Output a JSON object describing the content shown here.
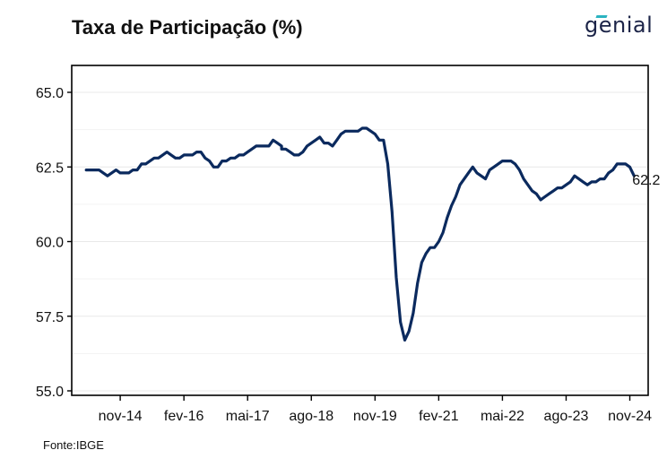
{
  "header": {
    "title": "Taxa de Participação (%)",
    "logo": "genial"
  },
  "footer": {
    "source": "Fonte:IBGE"
  },
  "colors": {
    "line": "#0b2a5e",
    "grid": "#e8e8e8",
    "axis": "#000000",
    "logo_accent": "#2bb3c0"
  },
  "chart_data": {
    "type": "line",
    "title": "Taxa de Participação (%)",
    "xlabel": "",
    "ylabel": "",
    "x_start": "2013-12",
    "x_end": "2025-01",
    "xticks": [
      {
        "x": "2014-11",
        "label": "nov-14"
      },
      {
        "x": "2016-02",
        "label": "fev-16"
      },
      {
        "x": "2017-05",
        "label": "mai-17"
      },
      {
        "x": "2018-08",
        "label": "ago-18"
      },
      {
        "x": "2019-11",
        "label": "nov-19"
      },
      {
        "x": "2021-02",
        "label": "fev-21"
      },
      {
        "x": "2022-05",
        "label": "mai-22"
      },
      {
        "x": "2023-08",
        "label": "ago-23"
      },
      {
        "x": "2024-11",
        "label": "nov-24"
      }
    ],
    "ylim": [
      55.0,
      65.0
    ],
    "yticks": [
      {
        "value": 55.0,
        "label": "55.0"
      },
      {
        "value": 57.5,
        "label": "57.5"
      },
      {
        "value": 60.0,
        "label": "60.0"
      },
      {
        "value": 62.5,
        "label": "62.5"
      },
      {
        "value": 65.0,
        "label": "65.0"
      }
    ],
    "grid": true,
    "last_value_label": "62.2",
    "series": [
      {
        "color": "#0b2a5e",
        "points": [
          [
            "2014-03",
            62.4
          ],
          [
            "2014-04",
            62.4
          ],
          [
            "2014-05",
            62.4
          ],
          [
            "2014-06",
            62.4
          ],
          [
            "2014-07",
            62.3
          ],
          [
            "2014-08",
            62.2
          ],
          [
            "2014-09",
            62.3
          ],
          [
            "2014-10",
            62.4
          ],
          [
            "2014-11",
            62.3
          ],
          [
            "2014-12",
            62.3
          ],
          [
            "2015-01",
            62.3
          ],
          [
            "2015-02",
            62.4
          ],
          [
            "2015-03",
            62.4
          ],
          [
            "2015-04",
            62.6
          ],
          [
            "2015-05",
            62.6
          ],
          [
            "2015-06",
            62.7
          ],
          [
            "2015-07",
            62.8
          ],
          [
            "2015-08",
            62.8
          ],
          [
            "2015-09",
            62.9
          ],
          [
            "2015-10",
            63.0
          ],
          [
            "2015-11",
            62.9
          ],
          [
            "2015-12",
            62.8
          ],
          [
            "2016-01",
            62.8
          ],
          [
            "2016-02",
            62.9
          ],
          [
            "2016-03",
            62.9
          ],
          [
            "2016-04",
            62.9
          ],
          [
            "2016-05",
            63.0
          ],
          [
            "2016-06",
            63.0
          ],
          [
            "2016-07",
            62.8
          ],
          [
            "2016-08",
            62.7
          ],
          [
            "2016-09",
            62.5
          ],
          [
            "2016-10",
            62.5
          ],
          [
            "2016-11",
            62.7
          ],
          [
            "2016-12",
            62.7
          ],
          [
            "2017-01",
            62.8
          ],
          [
            "2017-02",
            62.8
          ],
          [
            "2017-03",
            62.9
          ],
          [
            "2017-04",
            62.9
          ],
          [
            "2017-05",
            63.0
          ],
          [
            "2017-06",
            63.1
          ],
          [
            "2017-07",
            63.2
          ],
          [
            "2017-08",
            63.2
          ],
          [
            "2017-09",
            63.2
          ],
          [
            "2017-10",
            63.2
          ],
          [
            "2017-11",
            63.4
          ],
          [
            "2017-12",
            63.3
          ],
          [
            "2017-13",
            63.2
          ],
          [
            "2018-01",
            63.1
          ],
          [
            "2018-02",
            63.1
          ],
          [
            "2018-03",
            63.0
          ],
          [
            "2018-04",
            62.9
          ],
          [
            "2018-05",
            62.9
          ],
          [
            "2018-06",
            63.0
          ],
          [
            "2018-07",
            63.2
          ],
          [
            "2018-08",
            63.3
          ],
          [
            "2018-09",
            63.4
          ],
          [
            "2018-10",
            63.5
          ],
          [
            "2018-11",
            63.3
          ],
          [
            "2018-12",
            63.3
          ],
          [
            "2019-01",
            63.2
          ],
          [
            "2019-02",
            63.4
          ],
          [
            "2019-03",
            63.6
          ],
          [
            "2019-04",
            63.7
          ],
          [
            "2019-05",
            63.7
          ],
          [
            "2019-06",
            63.7
          ],
          [
            "2019-07",
            63.7
          ],
          [
            "2019-08",
            63.8
          ],
          [
            "2019-09",
            63.8
          ],
          [
            "2019-10",
            63.7
          ],
          [
            "2019-11",
            63.6
          ],
          [
            "2019-12",
            63.4
          ],
          [
            "2020-01",
            63.4
          ],
          [
            "2020-02",
            62.6
          ],
          [
            "2020-03",
            61.0
          ],
          [
            "2020-04",
            58.8
          ],
          [
            "2020-05",
            57.3
          ],
          [
            "2020-06",
            56.7
          ],
          [
            "2020-07",
            57.0
          ],
          [
            "2020-08",
            57.6
          ],
          [
            "2020-09",
            58.6
          ],
          [
            "2020-10",
            59.3
          ],
          [
            "2020-11",
            59.6
          ],
          [
            "2020-12",
            59.8
          ],
          [
            "2021-01",
            59.8
          ],
          [
            "2021-02",
            60.0
          ],
          [
            "2021-03",
            60.3
          ],
          [
            "2021-04",
            60.8
          ],
          [
            "2021-05",
            61.2
          ],
          [
            "2021-06",
            61.5
          ],
          [
            "2021-07",
            61.9
          ],
          [
            "2021-08",
            62.1
          ],
          [
            "2021-09",
            62.3
          ],
          [
            "2021-10",
            62.5
          ],
          [
            "2021-11",
            62.3
          ],
          [
            "2021-12",
            62.2
          ],
          [
            "2022-01",
            62.1
          ],
          [
            "2022-02",
            62.4
          ],
          [
            "2022-03",
            62.5
          ],
          [
            "2022-04",
            62.6
          ],
          [
            "2022-05",
            62.7
          ],
          [
            "2022-06",
            62.7
          ],
          [
            "2022-07",
            62.7
          ],
          [
            "2022-08",
            62.6
          ],
          [
            "2022-09",
            62.4
          ],
          [
            "2022-10",
            62.1
          ],
          [
            "2022-11",
            61.9
          ],
          [
            "2022-12",
            61.7
          ],
          [
            "2023-01",
            61.6
          ],
          [
            "2023-02",
            61.4
          ],
          [
            "2023-03",
            61.5
          ],
          [
            "2023-04",
            61.6
          ],
          [
            "2023-05",
            61.7
          ],
          [
            "2023-06",
            61.8
          ],
          [
            "2023-07",
            61.8
          ],
          [
            "2023-08",
            61.9
          ],
          [
            "2023-09",
            62.0
          ],
          [
            "2023-10",
            62.2
          ],
          [
            "2023-11",
            62.1
          ],
          [
            "2023-12",
            62.0
          ],
          [
            "2024-01",
            61.9
          ],
          [
            "2024-02",
            62.0
          ],
          [
            "2024-03",
            62.0
          ],
          [
            "2024-04",
            62.1
          ],
          [
            "2024-05",
            62.1
          ],
          [
            "2024-06",
            62.3
          ],
          [
            "2024-07",
            62.4
          ],
          [
            "2024-08",
            62.6
          ],
          [
            "2024-09",
            62.6
          ],
          [
            "2024-10",
            62.6
          ],
          [
            "2024-11",
            62.5
          ],
          [
            "2024-12",
            62.2
          ]
        ]
      }
    ]
  }
}
